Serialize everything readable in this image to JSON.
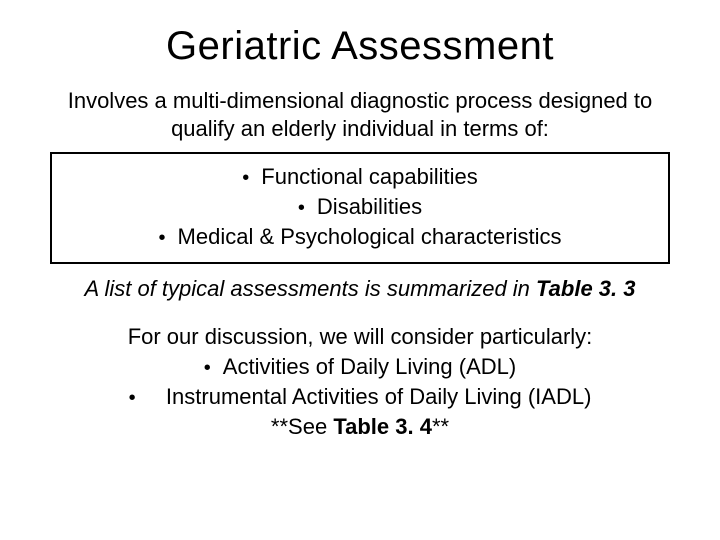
{
  "colors": {
    "background": "#ffffff",
    "text": "#000000",
    "box_border": "#000000"
  },
  "typography": {
    "title_fontsize_pt": 30,
    "body_fontsize_pt": 17,
    "font_family": "Arial"
  },
  "title": "Geriatric Assessment",
  "intro_line1": "Involves a multi-dimensional diagnostic process designed to",
  "intro_line2": "qualify an elderly individual in terms of:",
  "box": {
    "items": [
      "Functional capabilities",
      "Disabilities",
      "Medical & Psychological characteristics"
    ]
  },
  "summary_prefix": "A list of typical assessments is summarized in ",
  "summary_table": "Table 3. 3",
  "discussion_lead": "For our discussion, we will consider particularly:",
  "discussion_items": [
    "Activities of Daily Living (ADL)",
    "Instrumental Activities of Daily Living (IADL)"
  ],
  "see_prefix": "**See ",
  "see_table": "Table 3. 4",
  "see_suffix": "**"
}
